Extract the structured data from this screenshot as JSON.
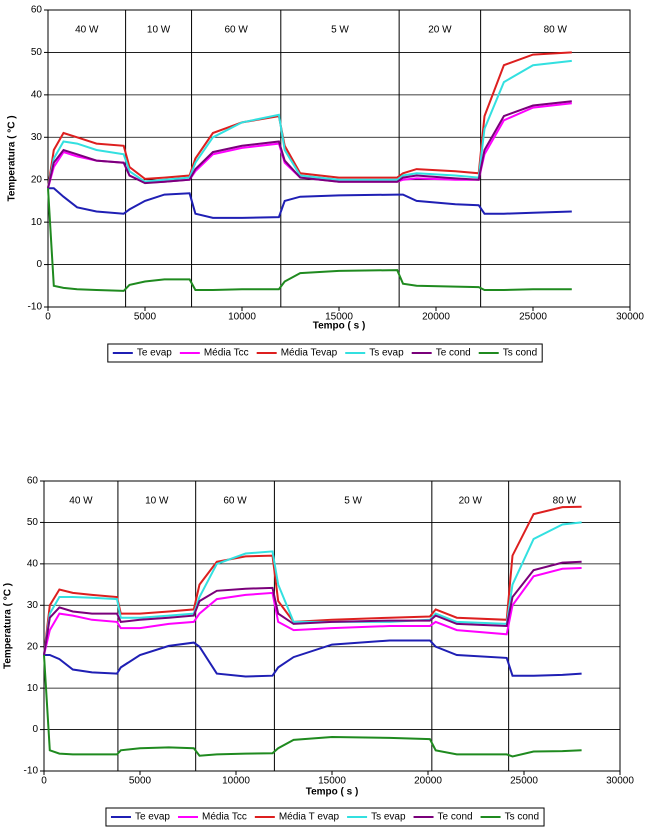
{
  "chart_data": [
    {
      "type": "line",
      "y_label": "Temperatura ( °C )",
      "x_label": "Tempo ( s )",
      "xlim": [
        0,
        30000
      ],
      "xticks": [
        0,
        5000,
        10000,
        15000,
        20000,
        25000,
        30000
      ],
      "ylim": [
        -10,
        60
      ],
      "yticks": [
        -10,
        0,
        10,
        20,
        30,
        40,
        50,
        60
      ],
      "grid": true,
      "phase_labels": [
        "40 W",
        "10 W",
        "60 W",
        "5 W",
        "20 W",
        "80 W"
      ],
      "phase_dividers": [
        4000,
        7400,
        12000,
        18100,
        22300
      ],
      "legend": "bottom",
      "x": [
        0,
        300,
        800,
        1500,
        2500,
        3900,
        4200,
        5000,
        6000,
        7300,
        7600,
        8500,
        10000,
        11900,
        12200,
        13000,
        15000,
        18000,
        18300,
        19000,
        21000,
        22200,
        22500,
        23500,
        25000,
        27000
      ],
      "series": [
        {
          "name": "Te evap",
          "color": "#1f1fb4",
          "values": [
            18,
            18,
            16,
            13.5,
            12.5,
            12,
            13,
            15,
            16.5,
            16.8,
            12,
            11,
            11,
            11.2,
            15,
            16,
            16.3,
            16.5,
            16.5,
            15,
            14.2,
            14,
            12,
            12,
            12.2,
            12.5
          ]
        },
        {
          "name": "Média Tcc",
          "color": "#ff00ff",
          "values": [
            18,
            23,
            26.5,
            25.5,
            24.5,
            24,
            21,
            19.3,
            19.5,
            20,
            22,
            26,
            27.5,
            28.5,
            24,
            20.5,
            19.5,
            19.5,
            20,
            20.3,
            20,
            20,
            26,
            34,
            37,
            38
          ]
        },
        {
          "name": "Média Tevap",
          "color": "#dd1f1f",
          "values": [
            18,
            27,
            31,
            30,
            28.5,
            28,
            23,
            20.2,
            20.5,
            21,
            25,
            31,
            33.5,
            35,
            28,
            21.5,
            20.5,
            20.5,
            21.5,
            22.5,
            22,
            21.5,
            35,
            47,
            49.5,
            50
          ]
        },
        {
          "name": "Ts evap",
          "color": "#33e0e0",
          "values": [
            18,
            25,
            29,
            28.5,
            27,
            26,
            22,
            19.5,
            20,
            20.5,
            24,
            30,
            33.5,
            35.3,
            27,
            21,
            20,
            20,
            21,
            21.5,
            21,
            20.5,
            32,
            43,
            47,
            48
          ]
        },
        {
          "name": "Te cond",
          "color": "#7a007a",
          "values": [
            18,
            24,
            27,
            26,
            24.5,
            24,
            21,
            19.2,
            19.5,
            20,
            22.5,
            26.5,
            28,
            29,
            24.5,
            20.5,
            19.5,
            19.5,
            20.5,
            21,
            20.3,
            20,
            27,
            35,
            37.5,
            38.5
          ]
        },
        {
          "name": "Ts cond",
          "color": "#1f8a1f",
          "values": [
            18,
            -5,
            -5.5,
            -5.8,
            -6,
            -6.2,
            -4.8,
            -4,
            -3.5,
            -3.5,
            -6,
            -6,
            -5.8,
            -5.8,
            -4,
            -2,
            -1.5,
            -1.3,
            -4.5,
            -5,
            -5.2,
            -5.3,
            -6,
            -6,
            -5.8,
            -5.8
          ]
        }
      ]
    },
    {
      "type": "line",
      "y_label": "Temperatura ( °C )",
      "x_label": "Tempo ( s )",
      "xlim": [
        0,
        30000
      ],
      "xticks": [
        0,
        5000,
        10000,
        15000,
        20000,
        25000,
        30000
      ],
      "ylim": [
        -10,
        60
      ],
      "yticks": [
        -10,
        0,
        10,
        20,
        30,
        40,
        50,
        60
      ],
      "grid": true,
      "phase_labels": [
        "40 W",
        "10 W",
        "60 W",
        "5 W",
        "20 W",
        "80 W"
      ],
      "phase_dividers": [
        3850,
        7900,
        12000,
        20200,
        24200
      ],
      "legend": "bottom",
      "x": [
        0,
        300,
        800,
        1500,
        2500,
        3800,
        4000,
        5000,
        6500,
        7800,
        8100,
        9000,
        10500,
        11900,
        12200,
        13000,
        15000,
        18000,
        20100,
        20400,
        21500,
        24100,
        24400,
        25500,
        27000,
        28000
      ],
      "series": [
        {
          "name": "Te evap",
          "color": "#1f1fb4",
          "values": [
            18,
            18,
            17,
            14.5,
            13.8,
            13.5,
            15,
            18,
            20.2,
            21,
            20,
            13.5,
            12.8,
            13,
            15,
            17.5,
            20.5,
            21.5,
            21.5,
            20,
            18,
            17.3,
            13,
            13,
            13.2,
            13.5
          ]
        },
        {
          "name": "Média Tcc",
          "color": "#ff00ff",
          "values": [
            18,
            24,
            28,
            27.5,
            26.5,
            26,
            24.5,
            24.5,
            25.5,
            26,
            28,
            31.5,
            32.5,
            33,
            26,
            24,
            24.5,
            25,
            25,
            26,
            24,
            23,
            30,
            37,
            38.8,
            39
          ]
        },
        {
          "name": "Média T evap",
          "color": "#dd1f1f",
          "values": [
            18,
            30,
            33.8,
            33,
            32.5,
            32,
            28,
            28,
            28.5,
            29,
            35,
            40.5,
            41.8,
            42,
            31,
            26,
            26.5,
            27,
            27.3,
            29,
            27,
            26.5,
            42,
            52,
            53.7,
            53.8
          ]
        },
        {
          "name": "Ts evap",
          "color": "#33e0e0",
          "values": [
            18,
            28,
            32,
            32,
            31.8,
            31.5,
            27,
            27,
            27.5,
            28,
            32,
            40,
            42.5,
            43,
            35,
            26,
            26,
            26,
            26.5,
            28,
            26,
            25.5,
            35,
            46,
            49.5,
            50
          ]
        },
        {
          "name": "Te cond",
          "color": "#7a007a",
          "values": [
            18,
            27,
            29.5,
            28.5,
            28,
            28,
            26,
            26.5,
            27,
            27.5,
            31,
            33.5,
            34,
            34.2,
            28,
            25.5,
            26,
            26.3,
            26.3,
            27.5,
            25.5,
            25,
            32,
            38.5,
            40.3,
            40.5
          ]
        },
        {
          "name": "Ts cond",
          "color": "#1f8a1f",
          "values": [
            18,
            -5,
            -5.8,
            -6,
            -6,
            -6,
            -5,
            -4.5,
            -4.3,
            -4.5,
            -6.3,
            -6,
            -5.8,
            -5.7,
            -4.5,
            -2.5,
            -1.8,
            -2,
            -2.3,
            -5,
            -6,
            -6,
            -6.5,
            -5.3,
            -5.2,
            -5
          ]
        }
      ]
    }
  ]
}
